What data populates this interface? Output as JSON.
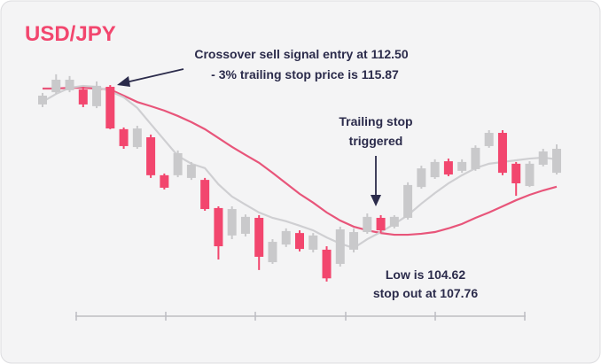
{
  "chart_data": {
    "type": "candlestick",
    "title": "USD/JPY",
    "annotations": [
      "Crossover sell signal entry at 112.50",
      "- 3% trailing stop price is 115.87",
      "Trailing stop",
      "triggered",
      "Low is 104.62",
      "stop out at 107.76"
    ],
    "categories": [
      null,
      null,
      null,
      null,
      null,
      null,
      null,
      null,
      null,
      null,
      null,
      null,
      null,
      null,
      null,
      null,
      null,
      null,
      null,
      null,
      null,
      null,
      null,
      null,
      null,
      null,
      null,
      null,
      null,
      null,
      null,
      null,
      null,
      null,
      null,
      null,
      null,
      null,
      null
    ],
    "open": [
      111.85,
      112.35,
      112.43,
      112.46,
      111.78,
      112.57,
      110.84,
      110.11,
      110.51,
      108.96,
      108.96,
      108.85,
      108.77,
      107.62,
      106.5,
      106.57,
      107.22,
      105.41,
      106.13,
      106.6,
      105.92,
      105.92,
      105.34,
      105.92,
      106.64,
      107.22,
      106.86,
      107.22,
      108.48,
      108.88,
      109.53,
      109.14,
      109.21,
      110.15,
      110.69,
      109.43,
      108.52,
      109.39,
      109.06
    ],
    "high": [
      112.32,
      113.08,
      113.01,
      112.57,
      112.79,
      112.64,
      110.91,
      110.98,
      110.62,
      109.03,
      109.97,
      109.5,
      108.85,
      107.69,
      107.69,
      107.36,
      107.33,
      106.35,
      106.79,
      106.71,
      106.6,
      106.06,
      106.86,
      106.79,
      107.4,
      107.33,
      107.33,
      108.67,
      109.35,
      109.61,
      109.64,
      109.61,
      110.18,
      110.8,
      110.8,
      109.5,
      109.53,
      110.04,
      110.22
    ],
    "low": [
      111.74,
      112.28,
      112.35,
      111.74,
      111.7,
      110.84,
      110.04,
      110.04,
      108.85,
      108.38,
      108.88,
      108.77,
      107.51,
      105.52,
      106.35,
      106.46,
      105.09,
      105.34,
      106.03,
      105.85,
      105.81,
      104.62,
      105.23,
      105.81,
      106.57,
      106.6,
      106.79,
      107.15,
      108.41,
      108.81,
      108.92,
      109.06,
      109.14,
      110.08,
      108.96,
      108.12,
      108.48,
      109.32,
      108.99
    ],
    "close": [
      112.21,
      112.86,
      112.86,
      111.85,
      112.61,
      110.87,
      110.15,
      110.87,
      108.96,
      108.45,
      109.86,
      109.39,
      107.58,
      106.06,
      107.58,
      107.26,
      105.63,
      106.24,
      106.68,
      105.95,
      106.5,
      104.75,
      106.75,
      106.64,
      107.26,
      106.71,
      107.26,
      108.56,
      109.24,
      109.5,
      108.99,
      109.5,
      110.08,
      110.69,
      109.06,
      108.63,
      109.43,
      109.93,
      110.04
    ],
    "up_color": "#c9c9cb",
    "down_color": "#f2466e",
    "series": [
      {
        "color": "#e8557a",
        "values": [
          112.5,
          112.5,
          112.53,
          112.53,
          112.5,
          112.46,
          112.21,
          111.95,
          111.78,
          111.6,
          111.38,
          111.13,
          110.84,
          110.48,
          110.12,
          109.79,
          109.47,
          109.06,
          108.63,
          108.2,
          107.84,
          107.44,
          107.11,
          106.86,
          106.71,
          106.6,
          106.53,
          106.53,
          106.57,
          106.64,
          106.79,
          106.97,
          107.22,
          107.44,
          107.69,
          107.94,
          108.16,
          108.34,
          108.49
        ]
      },
      {
        "color": "#cfcfd2",
        "values": [
          111.96,
          112.28,
          112.53,
          112.61,
          112.57,
          112.39,
          112.14,
          111.71,
          111.05,
          110.4,
          109.75,
          109.43,
          109.25,
          108.59,
          108.09,
          107.76,
          107.44,
          107.22,
          107.08,
          106.9,
          106.71,
          106.42,
          106.17,
          105.99,
          106.35,
          106.64,
          106.97,
          107.33,
          107.8,
          108.23,
          108.63,
          108.96,
          109.25,
          109.43,
          109.5,
          109.57,
          109.64,
          109.68,
          109.61
        ]
      }
    ],
    "ylim": [
      103.82,
      115.03
    ]
  }
}
